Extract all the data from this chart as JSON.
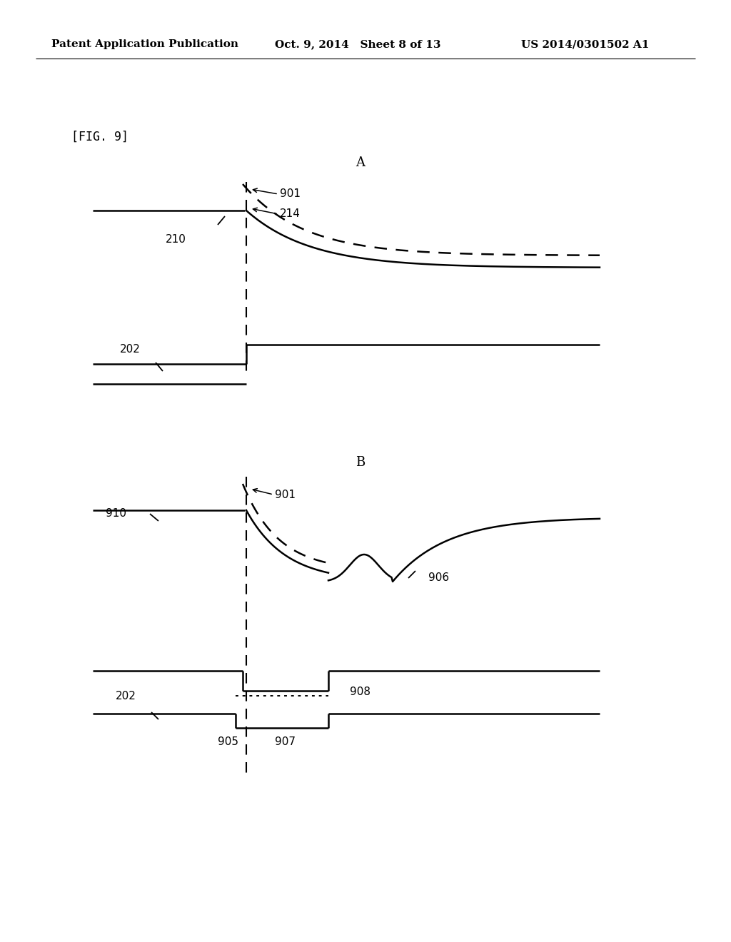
{
  "bg_color": "#ffffff",
  "header_left": "Patent Application Publication",
  "header_mid": "Oct. 9, 2014   Sheet 8 of 13",
  "header_right": "US 2014/0301502 A1",
  "fig_label": "[FIG. 9]",
  "panel_A_label": "A",
  "panel_B_label": "B",
  "label_901A": "901",
  "label_214": "214",
  "label_210": "210",
  "label_202A": "202",
  "label_910": "910",
  "label_901B": "901",
  "label_906": "906",
  "label_202B": "202",
  "label_905": "905",
  "label_907": "907",
  "label_908": "908"
}
